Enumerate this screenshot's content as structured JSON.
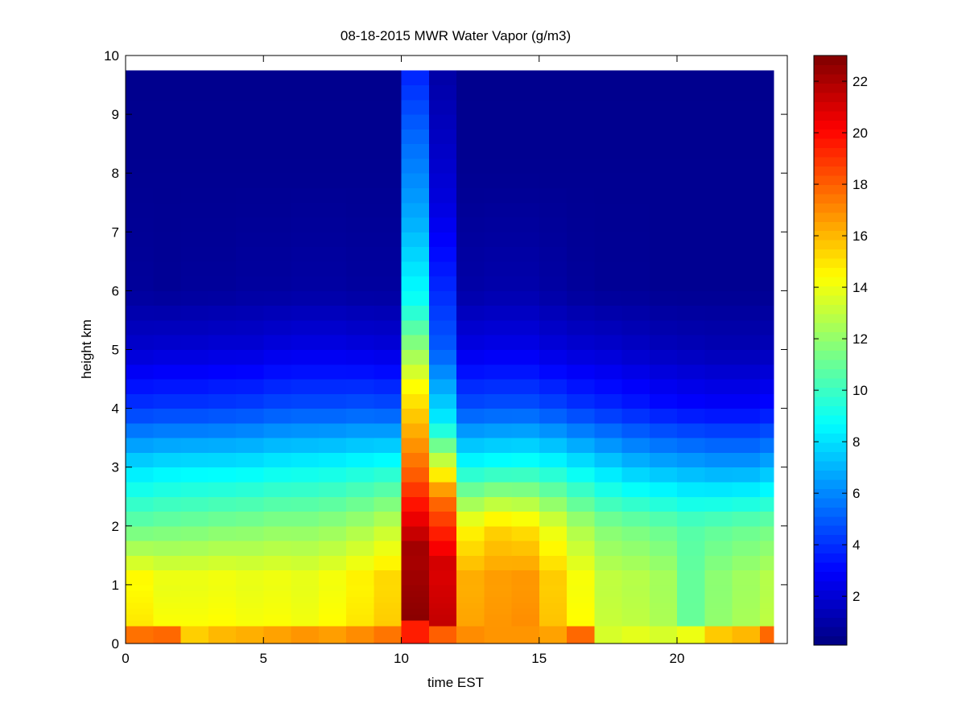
{
  "chart_data": {
    "type": "heatmap",
    "title": "08-18-2015 MWR Water Vapor (g/m3)",
    "xlabel": "time EST",
    "ylabel": "height km",
    "xlim": [
      0,
      24
    ],
    "ylim": [
      0,
      10
    ],
    "xticks": [
      0,
      5,
      10,
      15,
      20
    ],
    "yticks": [
      0,
      1,
      2,
      3,
      4,
      5,
      6,
      7,
      8,
      9,
      10
    ],
    "colorbar": {
      "colormap": "jet",
      "range": [
        0.1,
        23
      ],
      "ticks": [
        2,
        4,
        6,
        8,
        10,
        12,
        14,
        16,
        18,
        20,
        22
      ]
    },
    "x": [
      0,
      1,
      2,
      3,
      4,
      5,
      6,
      7,
      8,
      9,
      10,
      11,
      12,
      13,
      14,
      15,
      16,
      17,
      18,
      19,
      20,
      21,
      22,
      23
    ],
    "height_levels_km": [
      0,
      0.1,
      0.2,
      0.3,
      0.4,
      0.5,
      0.6,
      0.7,
      0.8,
      0.9,
      1.0,
      1.25,
      1.5,
      1.75,
      2.0,
      2.25,
      2.5,
      2.75,
      3.0,
      3.25,
      3.5,
      3.75,
      4.0,
      4.25,
      4.5,
      4.75,
      5.0,
      5.25,
      5.5,
      5.75,
      6.0,
      6.25,
      6.5,
      6.75,
      7.0,
      7.25,
      7.5,
      7.75,
      8.0,
      8.25,
      8.5,
      8.75,
      9.0,
      9.25,
      9.5,
      9.75
    ],
    "columns": [
      {
        "time": 0,
        "v0": 17.6,
        "v1": 15.0,
        "v2": 11.0,
        "v3": 8.0,
        "v4": 4.2,
        "v5": 1.9,
        "v6": 0.7,
        "v7": 0.5,
        "hscale": 1.0
      },
      {
        "time": 1,
        "v0": 17.8,
        "v1": 14.4,
        "v2": 11.2,
        "v3": 8.2,
        "v4": 4.3,
        "v5": 2.0,
        "v6": 0.6,
        "v7": 0.5,
        "hscale": 1.0
      },
      {
        "time": 2,
        "v0": 15.5,
        "v1": 14.4,
        "v2": 11.3,
        "v3": 8.3,
        "v4": 4.3,
        "v5": 2.0,
        "v6": 0.7,
        "v7": 0.5,
        "hscale": 1.0
      },
      {
        "time": 3,
        "v0": 16.0,
        "v1": 14.5,
        "v2": 11.5,
        "v3": 8.3,
        "v4": 4.4,
        "v5": 2.1,
        "v6": 0.7,
        "v7": 0.5,
        "hscale": 1.0
      },
      {
        "time": 4,
        "v0": 16.2,
        "v1": 14.3,
        "v2": 11.6,
        "v3": 8.4,
        "v4": 4.5,
        "v5": 2.1,
        "v6": 0.8,
        "v7": 0.5,
        "hscale": 1.0
      },
      {
        "time": 5,
        "v0": 16.5,
        "v1": 14.4,
        "v2": 11.8,
        "v3": 8.6,
        "v4": 4.7,
        "v5": 2.3,
        "v6": 0.8,
        "v7": 0.5,
        "hscale": 1.0
      },
      {
        "time": 6,
        "v0": 16.8,
        "v1": 14.2,
        "v2": 11.8,
        "v3": 8.7,
        "v4": 4.8,
        "v5": 2.4,
        "v6": 0.9,
        "v7": 0.5,
        "hscale": 1.0
      },
      {
        "time": 7,
        "v0": 16.6,
        "v1": 14.5,
        "v2": 12.0,
        "v3": 8.8,
        "v4": 4.8,
        "v5": 2.4,
        "v6": 0.9,
        "v7": 0.5,
        "hscale": 1.0
      },
      {
        "time": 8,
        "v0": 17.0,
        "v1": 15.0,
        "v2": 12.4,
        "v3": 9.0,
        "v4": 4.9,
        "v5": 2.3,
        "v6": 0.8,
        "v7": 0.5,
        "hscale": 1.0
      },
      {
        "time": 9,
        "v0": 17.5,
        "v1": 15.6,
        "v2": 13.0,
        "v3": 9.2,
        "v4": 4.8,
        "v5": 2.2,
        "v6": 0.8,
        "v7": 0.5,
        "hscale": 1.0
      },
      {
        "time": 10,
        "v0": 19.5,
        "v1": 22.8,
        "v2": 18.0,
        "v3": 14.5,
        "v4": 9.0,
        "v5": 6.8,
        "v6": 5.2,
        "v7": 1.0,
        "hscale": 1.45
      },
      {
        "time": 11,
        "v0": 18.0,
        "v1": 21.5,
        "v2": 17.5,
        "v3": 8.5,
        "v4": 5.0,
        "v5": 3.6,
        "v6": 2.2,
        "v7": 0.8,
        "hscale": 1.25
      },
      {
        "time": 12,
        "v0": 17.0,
        "v1": 16.5,
        "v2": 14.5,
        "v3": 9.0,
        "v4": 4.8,
        "v5": 2.4,
        "v6": 1.0,
        "v7": 0.5,
        "hscale": 1.0
      },
      {
        "time": 13,
        "v0": 16.8,
        "v1": 16.8,
        "v2": 15.3,
        "v3": 9.2,
        "v4": 4.9,
        "v5": 2.5,
        "v6": 1.1,
        "v7": 0.5,
        "hscale": 1.0
      },
      {
        "time": 14,
        "v0": 16.8,
        "v1": 17.0,
        "v2": 15.0,
        "v3": 9.3,
        "v4": 4.9,
        "v5": 2.5,
        "v6": 1.1,
        "v7": 0.5,
        "hscale": 1.0
      },
      {
        "time": 15,
        "v0": 16.5,
        "v1": 15.8,
        "v2": 13.8,
        "v3": 9.0,
        "v4": 4.6,
        "v5": 2.2,
        "v6": 0.9,
        "v7": 0.5,
        "hscale": 1.0
      },
      {
        "time": 16,
        "v0": 17.8,
        "v1": 14.5,
        "v2": 12.5,
        "v3": 8.4,
        "v4": 4.2,
        "v5": 2.0,
        "v6": 0.7,
        "v7": 0.5,
        "hscale": 1.0
      },
      {
        "time": 17,
        "v0": 13.5,
        "v1": 13.2,
        "v2": 11.6,
        "v3": 7.8,
        "v4": 3.9,
        "v5": 1.9,
        "v6": 0.6,
        "v7": 0.5,
        "hscale": 1.0
      },
      {
        "time": 18,
        "v0": 13.8,
        "v1": 13.0,
        "v2": 11.3,
        "v3": 7.3,
        "v4": 3.6,
        "v5": 1.7,
        "v6": 0.6,
        "v7": 0.5,
        "hscale": 1.0
      },
      {
        "time": 19,
        "v0": 13.5,
        "v1": 12.6,
        "v2": 11.0,
        "v3": 7.0,
        "v4": 3.3,
        "v5": 1.5,
        "v6": 0.5,
        "v7": 0.5,
        "hscale": 1.0
      },
      {
        "time": 20,
        "v0": 14.0,
        "v1": 11.0,
        "v2": 10.6,
        "v3": 6.8,
        "v4": 3.1,
        "v5": 1.4,
        "v6": 0.5,
        "v7": 0.5,
        "hscale": 1.0
      },
      {
        "time": 21,
        "v0": 15.6,
        "v1": 12.0,
        "v2": 10.8,
        "v3": 6.6,
        "v4": 3.0,
        "v5": 1.3,
        "v6": 0.5,
        "v7": 0.5,
        "hscale": 1.0
      },
      {
        "time": 22,
        "v0": 16.0,
        "v1": 12.5,
        "v2": 11.0,
        "v3": 6.6,
        "v4": 3.0,
        "v5": 1.3,
        "v6": 0.5,
        "v7": 0.5,
        "hscale": 1.0
      },
      {
        "time": 23,
        "v0": 17.8,
        "v1": 13.0,
        "v2": 11.2,
        "v3": 7.0,
        "v4": 3.2,
        "v5": 1.4,
        "v6": 0.5,
        "v7": 0.5,
        "hscale": 1.0
      }
    ]
  }
}
